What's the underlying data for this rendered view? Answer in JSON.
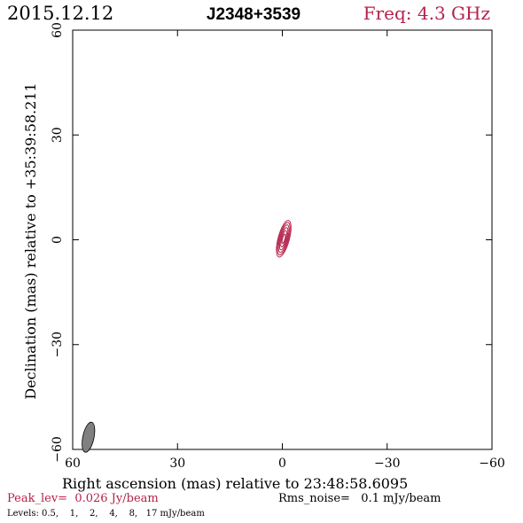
{
  "header": {
    "date": "2015.12.12",
    "source": "J2348+3539",
    "freq": "Freq: 4.3 GHz"
  },
  "footer": {
    "peak": "Peak_lev=  0.026 Jy/beam",
    "rms": "Rms_noise=   0.1 mJy/beam",
    "levels": "Levels: 0.5,    1,    2,    4,    8,   17 mJy/beam"
  },
  "colors": {
    "accent": "#b5214a",
    "axis": "#000000",
    "beam_fill": "#808080"
  },
  "chart_data": {
    "type": "contour",
    "title": "J2348+3539",
    "xlabel": "Right ascension (mas) relative to 23:48:58.6095",
    "ylabel": "Declination (mas) relative to +35:39:58.211",
    "xlim": [
      60,
      -60
    ],
    "ylim": [
      -60,
      60
    ],
    "xticks": [
      60,
      30,
      0,
      -30,
      -60
    ],
    "yticks": [
      -60,
      -30,
      0,
      30,
      60
    ],
    "xtick_labels": [
      "60",
      "30",
      "0",
      "−30",
      "−60"
    ],
    "ytick_labels": [
      "−60",
      "−30",
      "0",
      "30",
      "60"
    ],
    "grid": false,
    "contour_levels_mJy": [
      0.5,
      1,
      2,
      4,
      8,
      17
    ],
    "peak_Jy_per_beam": 0.026,
    "rms_noise_mJy_per_beam": 0.1,
    "component": {
      "center": [
        -0.4,
        0.3
      ],
      "contours": [
        {
          "level": 0.5,
          "semi_major": 5.4,
          "semi_minor": 1.6
        },
        {
          "level": 1,
          "semi_major": 4.8,
          "semi_minor": 1.35
        },
        {
          "level": 2,
          "semi_major": 4.1,
          "semi_minor": 1.1
        },
        {
          "level": 4,
          "semi_major": 3.3,
          "semi_minor": 0.85
        },
        {
          "level": 8,
          "semi_major": 2.4,
          "semi_minor": 0.6
        },
        {
          "level": 17,
          "semi_major": 1.4,
          "semi_minor": 0.35
        }
      ],
      "position_angle_deg": 15
    },
    "beam": {
      "center": [
        55.5,
        -56.5
      ],
      "major": 4.4,
      "minor": 1.6,
      "position_angle_deg": 12
    }
  }
}
